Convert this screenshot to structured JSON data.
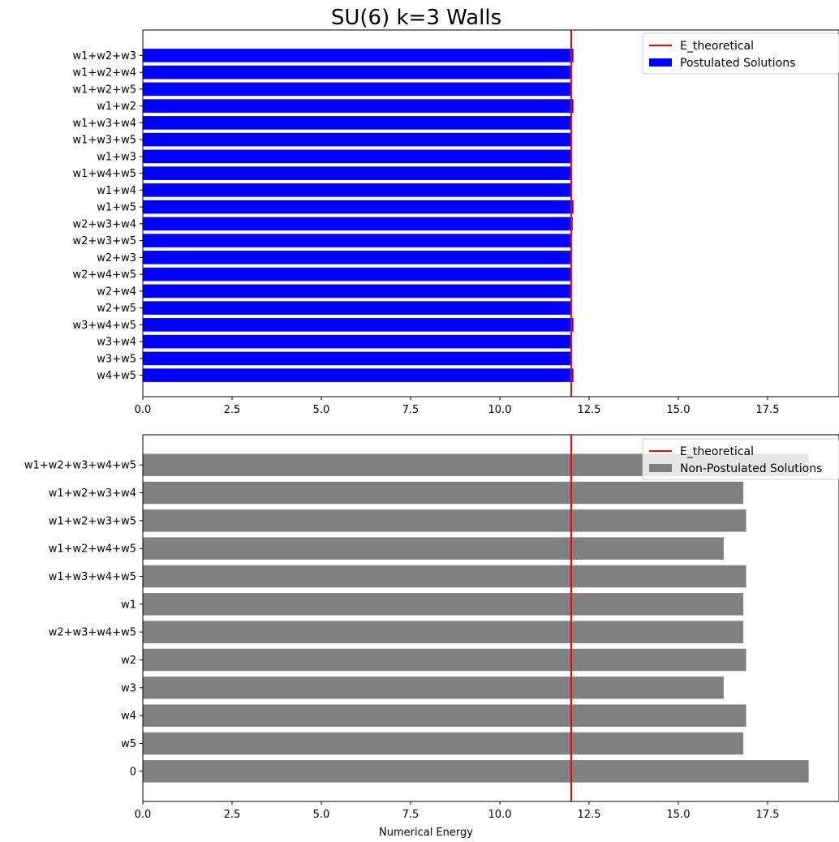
{
  "title": "SU(6) k=3 Walls",
  "chart_data": [
    {
      "type": "bar",
      "orientation": "horizontal",
      "xlabel": "",
      "xlim": [
        0,
        19.5
      ],
      "xticks": [
        "0.0",
        "2.5",
        "5.0",
        "7.5",
        "10.0",
        "12.5",
        "15.0",
        "17.5"
      ],
      "xtick_values": [
        0,
        2.5,
        5,
        7.5,
        10,
        12.5,
        15,
        17.5
      ],
      "categories": [
        "w1+w2+w3",
        "w1+w2+w4",
        "w1+w2+w5",
        "w1+w2",
        "w1+w3+w4",
        "w1+w3+w5",
        "w1+w3",
        "w1+w4+w5",
        "w1+w4",
        "w1+w5",
        "w2+w3+w4",
        "w2+w3+w5",
        "w2+w3",
        "w2+w4+w5",
        "w2+w4",
        "w2+w5",
        "w3+w4+w5",
        "w3+w4",
        "w3+w5",
        "w4+w5"
      ],
      "series": [
        {
          "name": "Postulated Solutions",
          "color": "#0000ff",
          "values": [
            12.06,
            12.02,
            12.0,
            12.06,
            12.0,
            11.98,
            12.0,
            12.0,
            12.0,
            12.06,
            12.04,
            12.0,
            12.0,
            12.0,
            11.98,
            12.0,
            12.06,
            12.0,
            12.0,
            12.06
          ]
        }
      ],
      "reference_line": {
        "name": "E_theoretical",
        "x": 12.0,
        "color": "#ff0000"
      },
      "legend": {
        "position": "top-right",
        "entries": [
          "E_theoretical",
          "Postulated Solutions"
        ]
      }
    },
    {
      "type": "bar",
      "orientation": "horizontal",
      "xlabel": "Numerical Energy",
      "xlim": [
        0,
        19.5
      ],
      "xticks": [
        "0.0",
        "2.5",
        "5.0",
        "7.5",
        "10.0",
        "12.5",
        "15.0",
        "17.5"
      ],
      "xtick_values": [
        0,
        2.5,
        5,
        7.5,
        10,
        12.5,
        15,
        17.5
      ],
      "categories": [
        "w1+w2+w3+w4+w5",
        "w1+w2+w3+w4",
        "w1+w2+w3+w5",
        "w1+w2+w4+w5",
        "w1+w3+w4+w5",
        "w1",
        "w2+w3+w4+w5",
        "w2",
        "w3",
        "w4",
        "w5",
        "0"
      ],
      "series": [
        {
          "name": "Non-Postulated Solutions",
          "color": "#808080",
          "values": [
            18.65,
            16.82,
            16.9,
            16.27,
            16.9,
            16.82,
            16.82,
            16.9,
            16.27,
            16.9,
            16.82,
            18.65
          ]
        }
      ],
      "reference_line": {
        "name": "E_theoretical",
        "x": 12.0,
        "color": "#ff0000"
      },
      "legend": {
        "position": "top-right",
        "entries": [
          "E_theoretical",
          "Non-Postulated Solutions"
        ]
      }
    }
  ]
}
